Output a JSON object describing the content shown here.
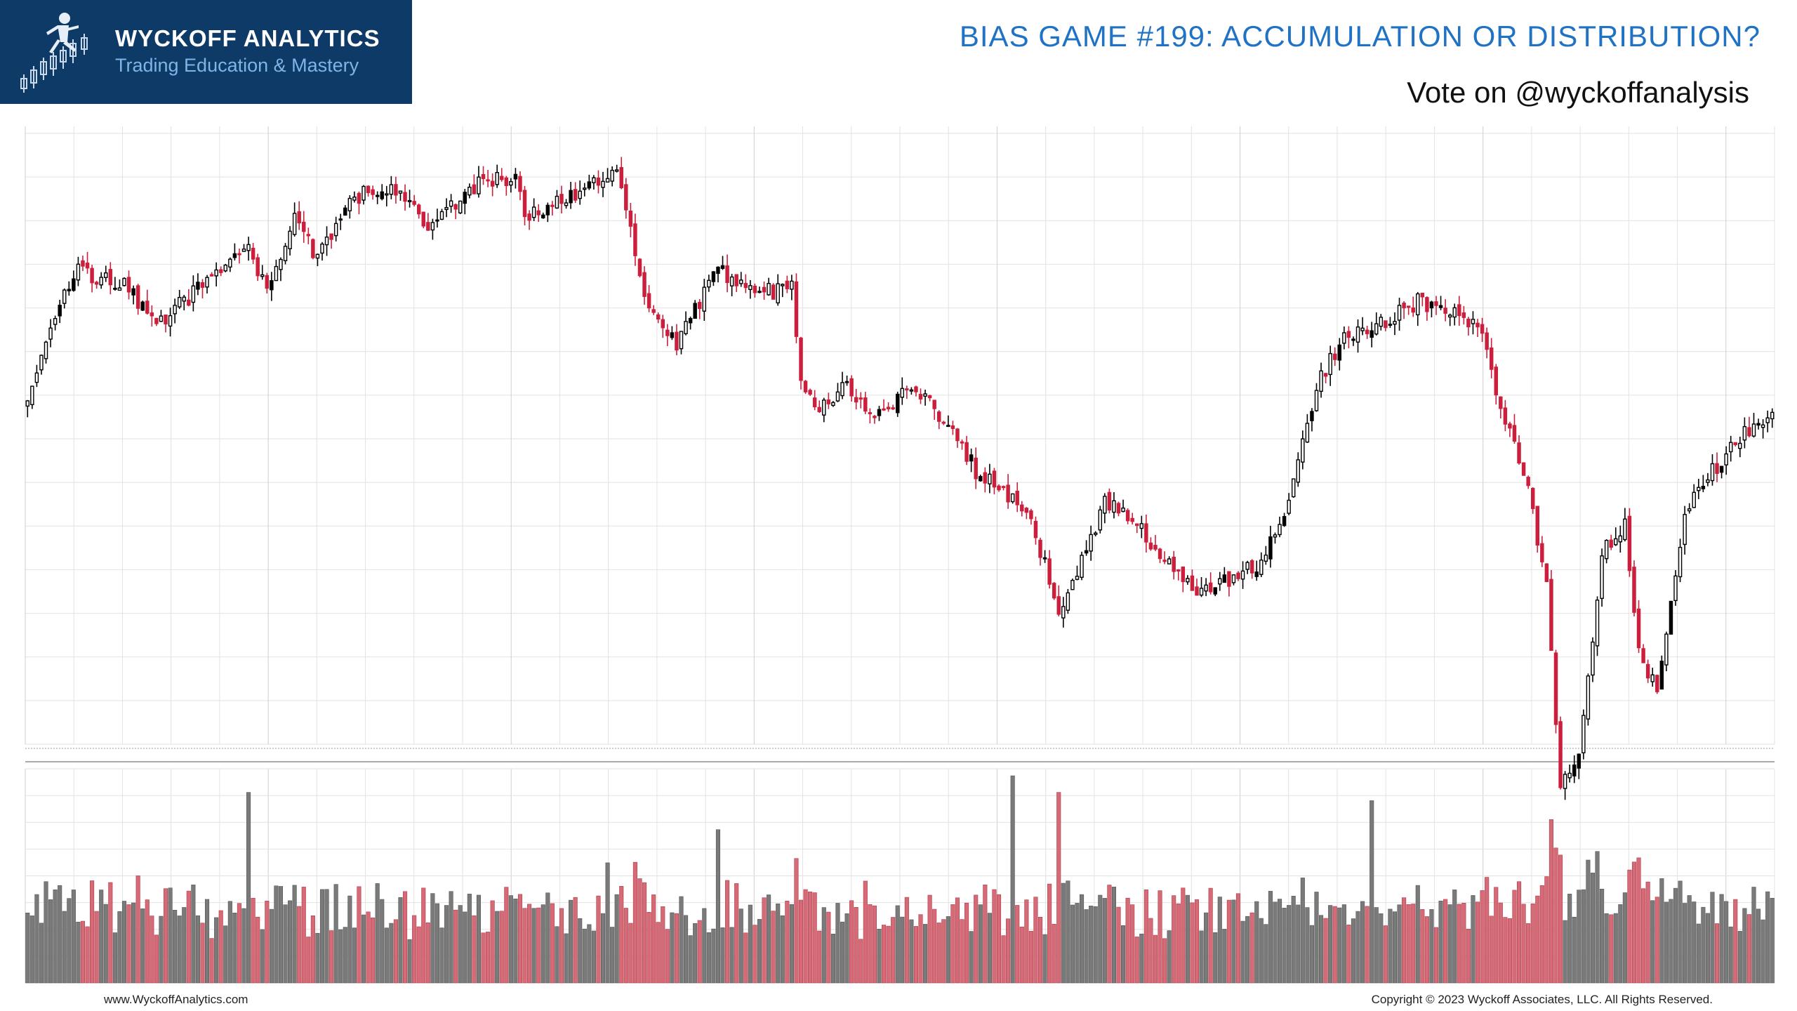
{
  "header": {
    "brand_name": "WYCKOFF ANALYTICS",
    "brand_tagline": "Trading Education & Mastery",
    "title": "BIAS GAME #199: ACCUMULATION OR DISTRIBUTION?",
    "subtitle": "Vote on @wyckoffanalysis",
    "logo_icon": "candlestick-runner-icon"
  },
  "footer": {
    "website": "www.WyckoffAnalytics.com",
    "copyright": "Copyright © 2023 Wyckoff Associates, LLC. All Rights Reserved."
  },
  "colors": {
    "up_candle": "#000000",
    "down_candle": "#cc1f3c",
    "up_volume": "#7a7a7a",
    "down_volume": "#d56b77",
    "grid": "#e2e2e2",
    "title_blue": "#1f72c4",
    "logo_bg": "#0d3a66"
  },
  "chart_data": {
    "type": "candlestick",
    "title": "",
    "xlabel": "",
    "ylabel": "",
    "axis_labels_shown": false,
    "price_range": [
      0,
      100
    ],
    "volume_range": [
      0,
      100
    ],
    "grid": true,
    "price_waypoints": [
      [
        0,
        58
      ],
      [
        5,
        72
      ],
      [
        10,
        82
      ],
      [
        20,
        80
      ],
      [
        28,
        72
      ],
      [
        34,
        76
      ],
      [
        38,
        80
      ],
      [
        48,
        86
      ],
      [
        52,
        78
      ],
      [
        58,
        92
      ],
      [
        63,
        84
      ],
      [
        70,
        96
      ],
      [
        80,
        98
      ],
      [
        88,
        90
      ],
      [
        96,
        98
      ],
      [
        106,
        100
      ],
      [
        108,
        92
      ],
      [
        116,
        96
      ],
      [
        128,
        100
      ],
      [
        130,
        94
      ],
      [
        134,
        76
      ],
      [
        141,
        68
      ],
      [
        150,
        82
      ],
      [
        162,
        78
      ],
      [
        166,
        80
      ],
      [
        168,
        62
      ],
      [
        172,
        56
      ],
      [
        178,
        60
      ],
      [
        184,
        54
      ],
      [
        192,
        60
      ],
      [
        199,
        54
      ],
      [
        206,
        44
      ],
      [
        214,
        38
      ],
      [
        218,
        34
      ],
      [
        224,
        18
      ],
      [
        228,
        24
      ],
      [
        234,
        38
      ],
      [
        239,
        36
      ],
      [
        246,
        28
      ],
      [
        254,
        20
      ],
      [
        262,
        24
      ],
      [
        268,
        26
      ],
      [
        274,
        38
      ],
      [
        280,
        60
      ],
      [
        286,
        70
      ],
      [
        294,
        72
      ],
      [
        302,
        76
      ],
      [
        310,
        74
      ],
      [
        316,
        70
      ],
      [
        320,
        56
      ],
      [
        326,
        40
      ],
      [
        330,
        22
      ],
      [
        333,
        -16
      ],
      [
        337,
        -10
      ],
      [
        342,
        28
      ],
      [
        347,
        34
      ],
      [
        350,
        10
      ],
      [
        354,
        2
      ],
      [
        360,
        36
      ],
      [
        366,
        44
      ],
      [
        374,
        52
      ],
      [
        379,
        54
      ]
    ],
    "volume_spikes": [
      [
        48,
        92
      ],
      [
        150,
        74
      ],
      [
        154,
        48
      ],
      [
        126,
        58
      ],
      [
        214,
        100
      ],
      [
        224,
        92
      ],
      [
        292,
        88
      ],
      [
        328,
        42
      ],
      [
        76,
        48
      ],
      [
        168,
        40
      ]
    ],
    "bar_count": 380,
    "seed": 199
  }
}
